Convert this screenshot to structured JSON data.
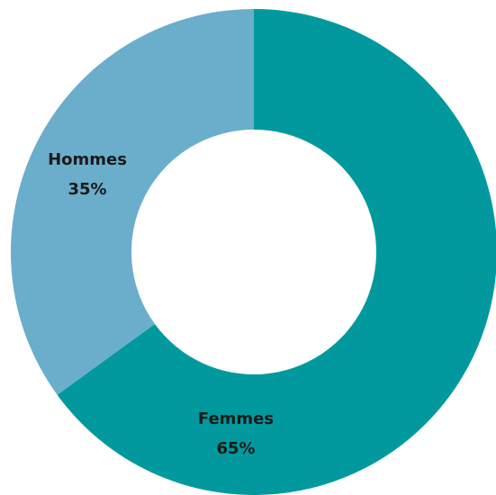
{
  "chart_data": {
    "type": "donut",
    "categories": [
      "Femmes",
      "Hommes"
    ],
    "values": [
      65,
      35
    ],
    "value_labels": [
      "65%",
      "35%"
    ],
    "colors": [
      "#02999e",
      "#6aaecb"
    ]
  }
}
